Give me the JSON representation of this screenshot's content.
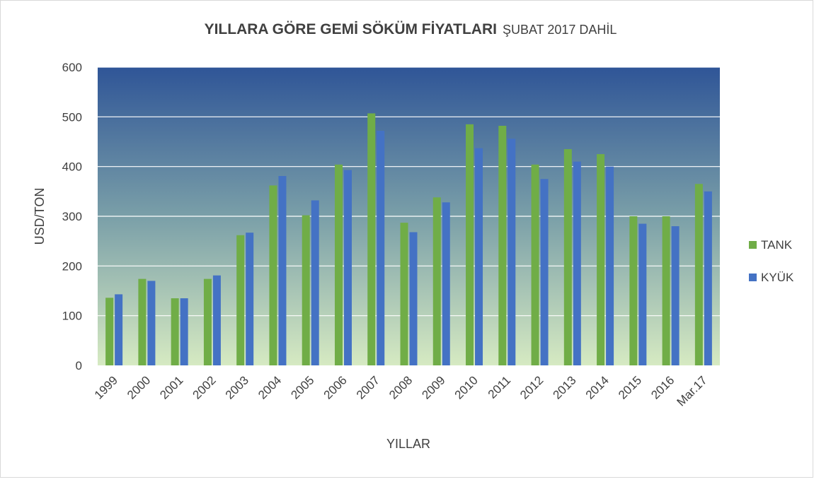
{
  "chart_data": {
    "type": "bar",
    "title": "YILLARA GÖRE GEMİ SÖKÜM FİYATLARI",
    "subtitle": "ŞUBAT 2017 DAHİL",
    "x_label": "YILLAR",
    "y_label": "USD/TON",
    "categories": [
      "1999",
      "2000",
      "2001",
      "2002",
      "2003",
      "2004",
      "2005",
      "2006",
      "2007",
      "2008",
      "2009",
      "2010",
      "2011",
      "2012",
      "2013",
      "2014",
      "2015",
      "2016",
      "Mar.17"
    ],
    "series": [
      {
        "name": "TANK",
        "color": "#70ad47",
        "values": [
          136,
          174,
          135,
          174,
          262,
          362,
          302,
          404,
          507,
          287,
          338,
          485,
          482,
          404,
          435,
          425,
          300,
          300,
          365
        ]
      },
      {
        "name": "KYÜK",
        "color": "#4472c4",
        "values": [
          143,
          170,
          135,
          181,
          267,
          381,
          332,
          393,
          472,
          268,
          328,
          437,
          456,
          375,
          410,
          400,
          285,
          280,
          350
        ]
      }
    ],
    "ylim": [
      0,
      600
    ],
    "yticks": [
      0,
      100,
      200,
      300,
      400,
      500,
      600
    ],
    "grid": true,
    "legend": "right"
  }
}
